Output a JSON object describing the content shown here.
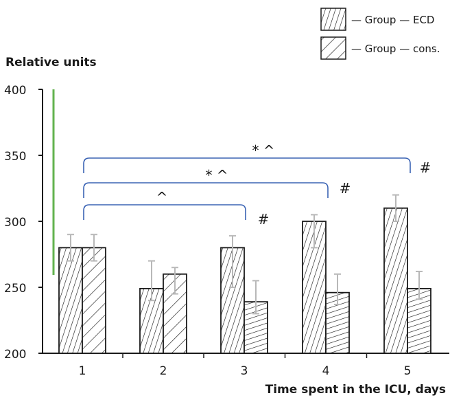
{
  "chart_data": {
    "type": "bar",
    "ylabel": "Relative units",
    "xlabel": "Time spent in the ICU, days",
    "ylim": [
      200,
      400
    ],
    "yticks": [
      200,
      250,
      300,
      350,
      400
    ],
    "categories": [
      "1",
      "2",
      "3",
      "4",
      "5"
    ],
    "series": [
      {
        "name": "— Group — ECD",
        "pattern": "steep-hatch",
        "values": [
          280,
          249,
          280,
          300,
          310
        ],
        "err_low": [
          270,
          240,
          250,
          280,
          300
        ],
        "err_high": [
          290,
          270,
          289,
          305,
          320
        ]
      },
      {
        "name": "— Group — cons.",
        "pattern": "diagonal-hatch",
        "values": [
          280,
          260,
          239,
          246,
          249
        ],
        "err_low": [
          270,
          245,
          230,
          237,
          241
        ],
        "err_high": [
          290,
          265,
          255,
          260,
          262
        ]
      }
    ],
    "brackets": [
      {
        "from": "1",
        "to": "3",
        "label": "^",
        "end_mark": "#"
      },
      {
        "from": "1",
        "to": "4",
        "label": "*   ^",
        "end_mark": "#"
      },
      {
        "from": "1",
        "to": "5",
        "label": "*   ^",
        "end_mark": "#"
      }
    ],
    "legend_position": "top-right",
    "grid": false,
    "colors": {
      "bracket": "#3a63b4",
      "error_bar": "#b8b8b8",
      "axis_accent": "#63b34f",
      "ink": "#1a1a1a"
    }
  }
}
